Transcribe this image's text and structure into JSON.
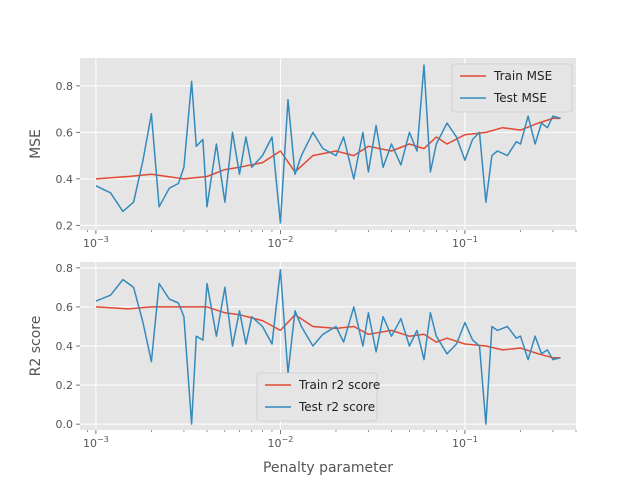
{
  "chart_data": [
    {
      "type": "line",
      "xscale": "log",
      "xlim": [
        0.00082,
        0.4
      ],
      "ylim": [
        0.18,
        0.92
      ],
      "xlabel": "",
      "ylabel": "MSE",
      "grid": true,
      "legend_position": "top-right",
      "x_ticks": [
        {
          "base": "10",
          "exp": "−3"
        },
        {
          "base": "10",
          "exp": "−2"
        },
        {
          "base": "10",
          "exp": "−1"
        }
      ],
      "y_ticks": [
        "0.2",
        "0.4",
        "0.6",
        "0.8"
      ],
      "y_tick_values": [
        0.2,
        0.4,
        0.6,
        0.8
      ],
      "series": [
        {
          "name": "Train MSE",
          "color": "#E24A33",
          "x": [
            0.001,
            0.0015,
            0.002,
            0.003,
            0.004,
            0.005,
            0.006,
            0.008,
            0.01,
            0.012,
            0.015,
            0.02,
            0.025,
            0.03,
            0.04,
            0.05,
            0.06,
            0.07,
            0.08,
            0.1,
            0.13,
            0.16,
            0.2,
            0.25,
            0.3,
            0.33
          ],
          "values": [
            0.4,
            0.41,
            0.42,
            0.4,
            0.41,
            0.44,
            0.45,
            0.47,
            0.52,
            0.43,
            0.5,
            0.52,
            0.5,
            0.54,
            0.52,
            0.55,
            0.53,
            0.58,
            0.55,
            0.59,
            0.6,
            0.62,
            0.61,
            0.64,
            0.66,
            0.66
          ]
        },
        {
          "name": "Test MSE",
          "color": "#348ABD",
          "x": [
            0.001,
            0.0012,
            0.0014,
            0.0016,
            0.0018,
            0.002,
            0.0022,
            0.0025,
            0.0028,
            0.003,
            0.0033,
            0.0035,
            0.0038,
            0.004,
            0.0045,
            0.005,
            0.0055,
            0.006,
            0.0065,
            0.007,
            0.008,
            0.009,
            0.01,
            0.011,
            0.012,
            0.013,
            0.015,
            0.017,
            0.02,
            0.022,
            0.025,
            0.028,
            0.03,
            0.033,
            0.036,
            0.04,
            0.045,
            0.05,
            0.055,
            0.06,
            0.065,
            0.07,
            0.08,
            0.09,
            0.1,
            0.11,
            0.12,
            0.13,
            0.14,
            0.15,
            0.17,
            0.19,
            0.2,
            0.22,
            0.24,
            0.26,
            0.28,
            0.3,
            0.33
          ],
          "values": [
            0.37,
            0.34,
            0.26,
            0.3,
            0.48,
            0.68,
            0.28,
            0.36,
            0.38,
            0.45,
            0.82,
            0.54,
            0.57,
            0.28,
            0.55,
            0.3,
            0.6,
            0.42,
            0.58,
            0.45,
            0.5,
            0.58,
            0.21,
            0.74,
            0.42,
            0.5,
            0.6,
            0.53,
            0.5,
            0.58,
            0.4,
            0.6,
            0.43,
            0.63,
            0.45,
            0.55,
            0.46,
            0.6,
            0.52,
            0.89,
            0.43,
            0.55,
            0.64,
            0.58,
            0.48,
            0.57,
            0.6,
            0.3,
            0.5,
            0.52,
            0.5,
            0.56,
            0.55,
            0.67,
            0.55,
            0.64,
            0.62,
            0.67,
            0.66
          ]
        }
      ]
    },
    {
      "type": "line",
      "xscale": "log",
      "xlim": [
        0.00082,
        0.4
      ],
      "ylim": [
        -0.03,
        0.83
      ],
      "xlabel": "Penalty parameter",
      "ylabel": "R2 score",
      "grid": true,
      "legend_position": "lower-center",
      "x_ticks": [
        {
          "base": "10",
          "exp": "−3"
        },
        {
          "base": "10",
          "exp": "−2"
        },
        {
          "base": "10",
          "exp": "−1"
        }
      ],
      "y_ticks": [
        "0.0",
        "0.2",
        "0.4",
        "0.6",
        "0.8"
      ],
      "y_tick_values": [
        0.0,
        0.2,
        0.4,
        0.6,
        0.8
      ],
      "series": [
        {
          "name": "Train r2 score",
          "color": "#E24A33",
          "x": [
            0.001,
            0.0015,
            0.002,
            0.003,
            0.004,
            0.005,
            0.006,
            0.008,
            0.01,
            0.012,
            0.015,
            0.02,
            0.025,
            0.03,
            0.04,
            0.05,
            0.06,
            0.07,
            0.08,
            0.1,
            0.13,
            0.16,
            0.2,
            0.25,
            0.3,
            0.33
          ],
          "values": [
            0.6,
            0.59,
            0.6,
            0.6,
            0.6,
            0.57,
            0.56,
            0.53,
            0.48,
            0.56,
            0.5,
            0.49,
            0.5,
            0.46,
            0.48,
            0.45,
            0.46,
            0.42,
            0.44,
            0.41,
            0.4,
            0.38,
            0.39,
            0.36,
            0.34,
            0.34
          ]
        },
        {
          "name": "Test r2 score",
          "color": "#348ABD",
          "x": [
            0.001,
            0.0012,
            0.0014,
            0.0016,
            0.0018,
            0.002,
            0.0022,
            0.0025,
            0.0028,
            0.003,
            0.0033,
            0.0035,
            0.0038,
            0.004,
            0.0045,
            0.005,
            0.0055,
            0.006,
            0.0065,
            0.007,
            0.008,
            0.009,
            0.01,
            0.011,
            0.012,
            0.013,
            0.015,
            0.017,
            0.02,
            0.022,
            0.025,
            0.028,
            0.03,
            0.033,
            0.036,
            0.04,
            0.045,
            0.05,
            0.055,
            0.06,
            0.065,
            0.07,
            0.08,
            0.09,
            0.1,
            0.11,
            0.12,
            0.13,
            0.14,
            0.15,
            0.17,
            0.19,
            0.2,
            0.22,
            0.24,
            0.26,
            0.28,
            0.3,
            0.33
          ],
          "values": [
            0.63,
            0.66,
            0.74,
            0.7,
            0.52,
            0.32,
            0.72,
            0.64,
            0.62,
            0.55,
            0.0,
            0.45,
            0.43,
            0.72,
            0.45,
            0.7,
            0.4,
            0.58,
            0.41,
            0.55,
            0.5,
            0.41,
            0.79,
            0.26,
            0.58,
            0.5,
            0.4,
            0.46,
            0.5,
            0.42,
            0.6,
            0.4,
            0.57,
            0.37,
            0.55,
            0.45,
            0.54,
            0.4,
            0.48,
            0.33,
            0.57,
            0.45,
            0.36,
            0.41,
            0.52,
            0.43,
            0.4,
            0.0,
            0.5,
            0.48,
            0.5,
            0.44,
            0.45,
            0.33,
            0.45,
            0.36,
            0.38,
            0.33,
            0.34
          ]
        }
      ]
    }
  ]
}
